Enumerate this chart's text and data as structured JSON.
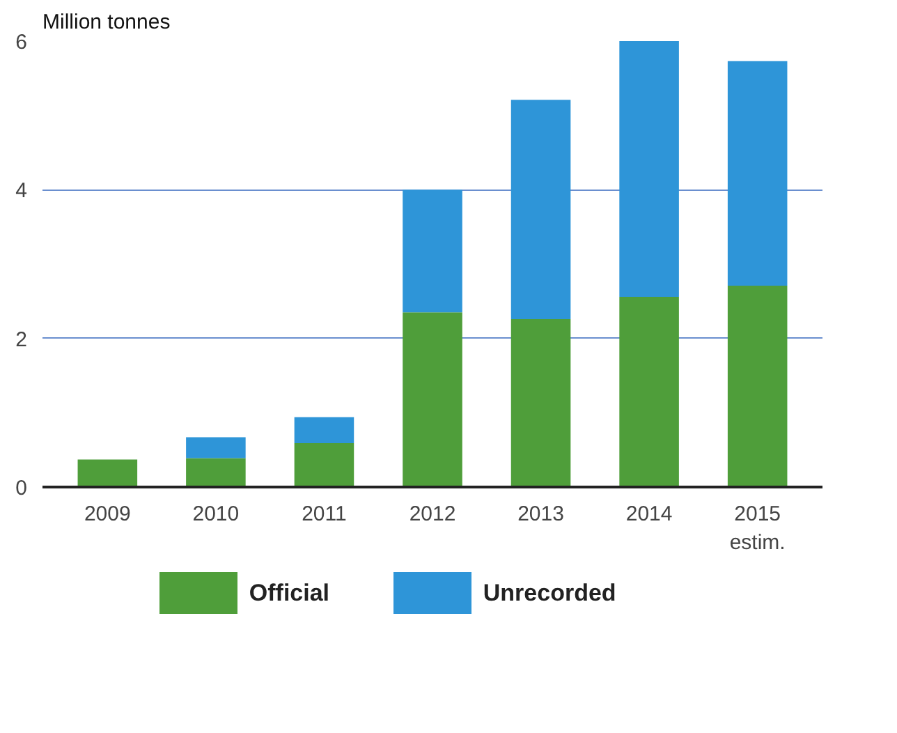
{
  "chart_data": {
    "type": "bar",
    "ylabel": "Million tonnes",
    "categories": [
      "2009",
      "2010",
      "2011",
      "2012",
      "2013",
      "2014",
      "2015\nestim."
    ],
    "stacked": true,
    "series": [
      {
        "name": "Official",
        "color": "#4f9e3a",
        "values": [
          0.37,
          0.39,
          0.59,
          2.35,
          2.26,
          2.56,
          2.71
        ]
      },
      {
        "name": "Unrecorded",
        "color": "#2e95d8",
        "values": [
          0,
          0.28,
          0.35,
          1.65,
          2.95,
          3.44,
          3.02
        ]
      }
    ],
    "ylim": [
      0,
      6
    ],
    "yticks": [
      0,
      2,
      4,
      6
    ],
    "grid": "y",
    "legend": "bottom"
  }
}
